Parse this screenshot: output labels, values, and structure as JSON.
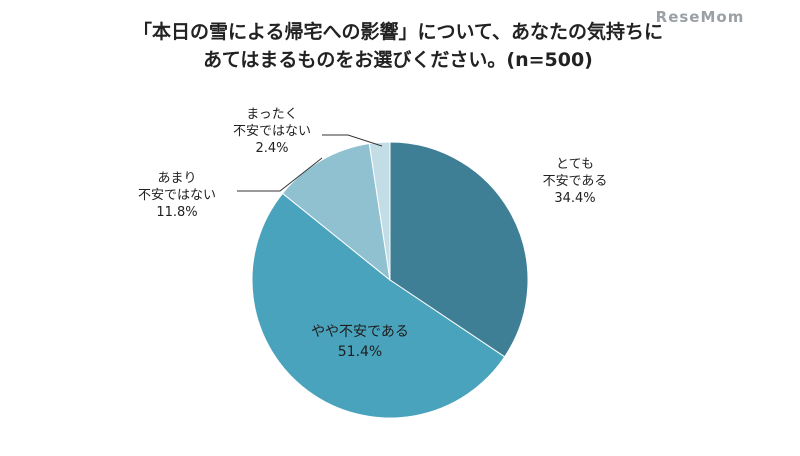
{
  "chart_data": {
    "type": "pie",
    "title_lines": [
      "「本日の雪による帰宅への影響」について、あなたの気持ちに",
      "あてはまるものをお選びください。(n=500)"
    ],
    "slices": [
      {
        "label_lines": [
          "とても",
          "不安である"
        ],
        "value": 34.4,
        "value_label": "34.4%",
        "color": "#3e7f96"
      },
      {
        "label_lines": [
          "やや不安である"
        ],
        "value": 51.4,
        "value_label": "51.4%",
        "color": "#4aa3bc"
      },
      {
        "label_lines": [
          "あまり",
          "不安ではない"
        ],
        "value": 11.8,
        "value_label": "11.8%",
        "color": "#8fc1d0"
      },
      {
        "label_lines": [
          "まったく",
          "不安ではない"
        ],
        "value": 2.4,
        "value_label": "2.4%",
        "color": "#c2dde6"
      }
    ],
    "start_angle_deg": 0,
    "direction": "clockwise",
    "legend": "none"
  },
  "watermark": "ReseMom"
}
